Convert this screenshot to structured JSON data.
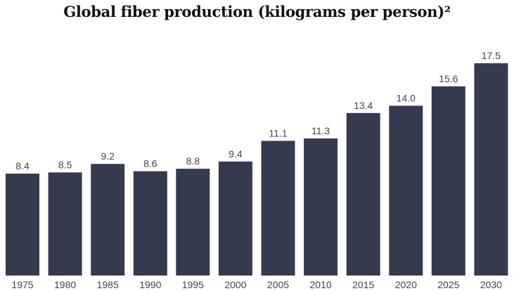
{
  "chart_data": {
    "type": "bar",
    "title": "Global fiber production (kilograms per person)²",
    "xlabel": "",
    "ylabel": "",
    "categories": [
      "1975",
      "1980",
      "1985",
      "1990",
      "1995",
      "2000",
      "2005",
      "2010",
      "2015",
      "2020",
      "2025",
      "2030"
    ],
    "values": [
      8.4,
      8.5,
      9.2,
      8.6,
      8.8,
      9.4,
      11.1,
      11.3,
      13.4,
      14.0,
      15.6,
      17.5
    ],
    "value_labels": [
      "8.4",
      "8.5",
      "9.2",
      "8.6",
      "8.8",
      "9.4",
      "11.1",
      "11.3",
      "13.4",
      "14.0",
      "15.6",
      "17.5"
    ],
    "ylim": [
      0,
      17.5
    ],
    "grid": false,
    "bar_color": "#353a4f",
    "data_labels": true
  }
}
